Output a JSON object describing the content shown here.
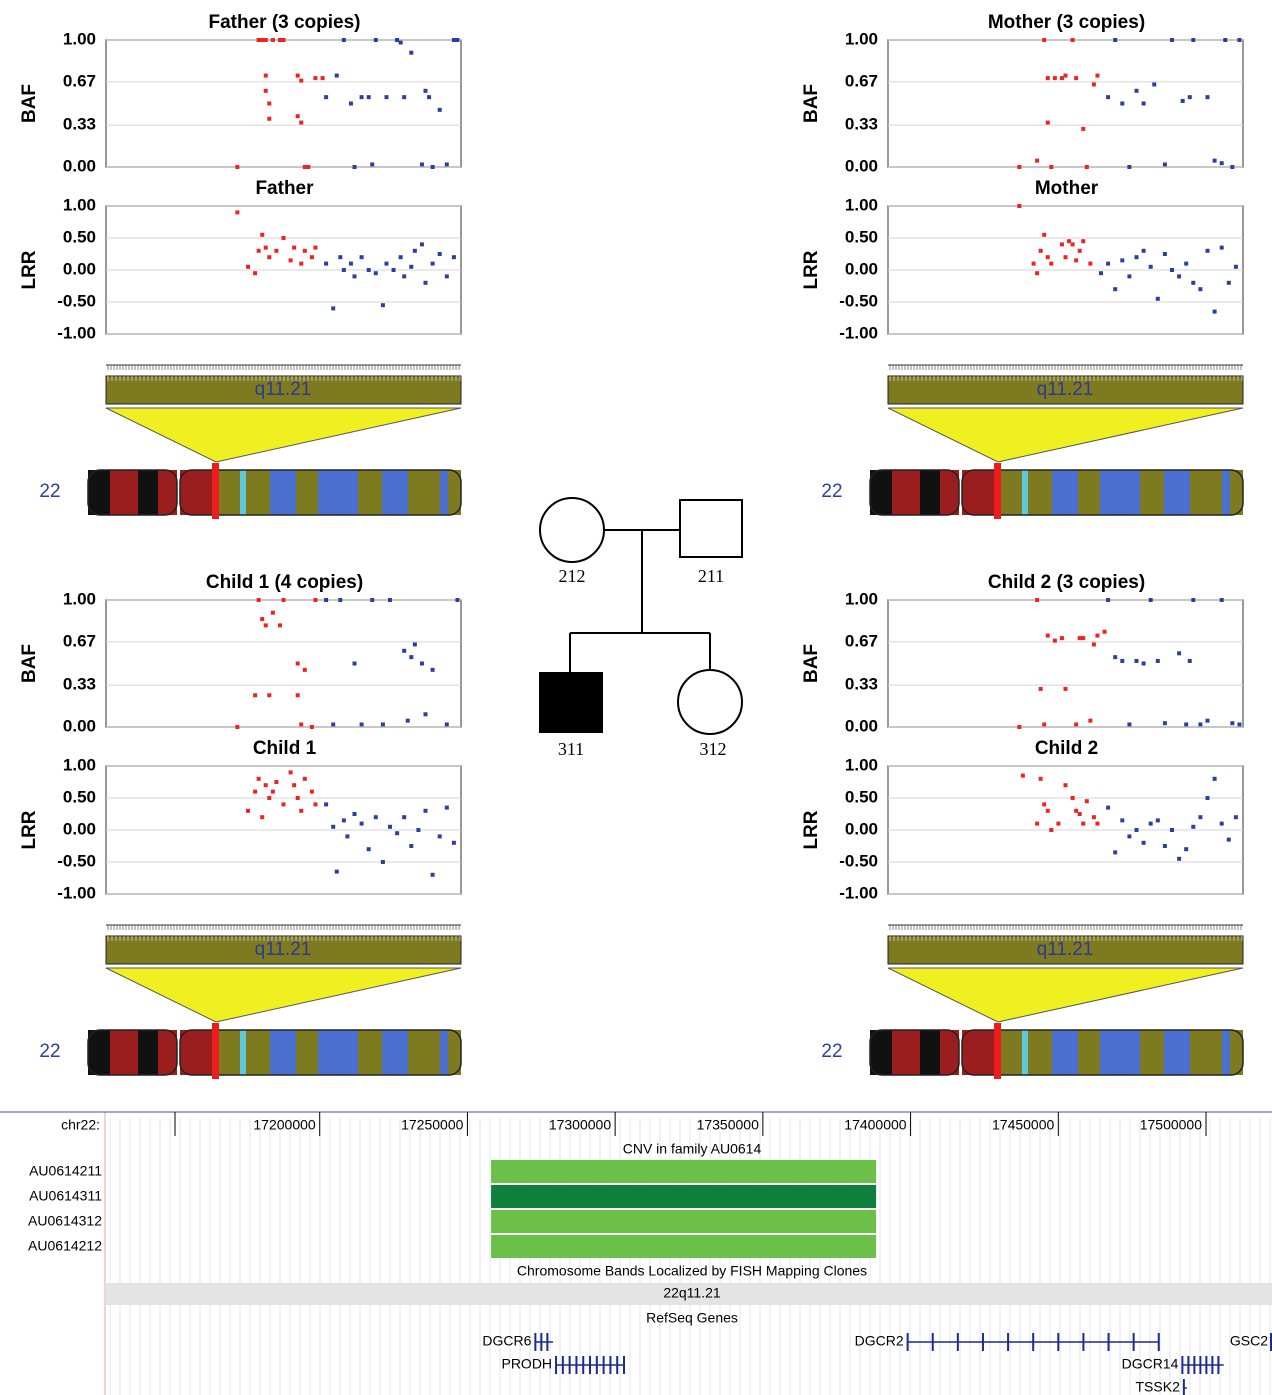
{
  "chart_data": [
    {
      "type": "scatter",
      "title": "Father (3 copies)",
      "ylabel": "BAF",
      "band_label": "q11.21",
      "chromosome": "22",
      "xlim": [
        0,
        100
      ],
      "ylim": [
        0,
        1
      ],
      "yticks": [
        {
          "value": 1,
          "label": "1.00"
        },
        {
          "value": 0.67,
          "label": "0.67"
        },
        {
          "value": 0.33,
          "label": "0.33"
        },
        {
          "value": 0,
          "label": "0.00"
        }
      ],
      "series": [
        {
          "color": "#ee2222",
          "x": [
            37,
            43,
            44,
            45,
            45,
            45,
            46,
            46,
            47,
            49,
            50,
            54,
            54,
            55,
            55,
            56,
            57,
            59,
            61
          ],
          "values": [
            0,
            1,
            1,
            1,
            0.72,
            0.6,
            0.5,
            0.38,
            1,
            1,
            1,
            0.72,
            0.4,
            0.35,
            0.68,
            0,
            0,
            0.7,
            0.7
          ]
        },
        {
          "color": "#2a3fa0",
          "x": [
            62,
            65,
            67,
            69,
            70,
            72,
            74,
            75,
            76,
            79,
            82,
            83,
            84,
            86,
            89,
            90,
            91,
            92,
            94,
            96,
            98,
            99
          ],
          "values": [
            0.55,
            0.72,
            1,
            0.5,
            0,
            0.55,
            0.55,
            0.02,
            1,
            0.55,
            1,
            0.98,
            0.55,
            0.9,
            0.02,
            0.6,
            0.55,
            0,
            0.45,
            0.02,
            1,
            1
          ]
        }
      ]
    },
    {
      "type": "scatter",
      "title": "Father",
      "ylabel": "LRR",
      "xlim": [
        0,
        100
      ],
      "ylim": [
        -1,
        1
      ],
      "yticks": [
        {
          "value": 1,
          "label": "1.00"
        },
        {
          "value": 0.5,
          "label": "0.50"
        },
        {
          "value": 0,
          "label": "0.00"
        },
        {
          "value": -0.5,
          "label": "-0.50"
        },
        {
          "value": -1,
          "label": "-1.00"
        }
      ],
      "series": [
        {
          "color": "#ee2222",
          "x": [
            37,
            40,
            42,
            43,
            44,
            45,
            46,
            48,
            50,
            52,
            53,
            55,
            56,
            58,
            59
          ],
          "values": [
            0.9,
            0.05,
            -0.05,
            0.3,
            0.55,
            0.35,
            0.2,
            0.3,
            0.5,
            0.15,
            0.35,
            0.1,
            0.3,
            0.2,
            0.35
          ]
        },
        {
          "color": "#2a3fa0",
          "x": [
            62,
            64,
            66,
            67,
            69,
            70,
            72,
            74,
            76,
            78,
            79,
            81,
            83,
            84,
            86,
            87,
            89,
            90,
            92,
            94,
            96,
            98
          ],
          "values": [
            0.1,
            -0.6,
            0.2,
            0,
            0.1,
            -0.1,
            0.2,
            0,
            -0.05,
            -0.55,
            0.1,
            0,
            0.2,
            -0.1,
            0.05,
            0.3,
            0.4,
            -0.2,
            0.1,
            0.25,
            -0.1,
            0.2
          ]
        }
      ]
    },
    {
      "type": "scatter",
      "title": "Mother (3 copies)",
      "ylabel": "BAF",
      "band_label": "q11.21",
      "chromosome": "22",
      "xlim": [
        0,
        100
      ],
      "ylim": [
        0,
        1
      ],
      "yticks": [
        {
          "value": 1,
          "label": "1.00"
        },
        {
          "value": 0.67,
          "label": "0.67"
        },
        {
          "value": 0.33,
          "label": "0.33"
        },
        {
          "value": 0,
          "label": "0.00"
        }
      ],
      "series": [
        {
          "color": "#ee2222",
          "x": [
            37,
            42,
            44,
            45,
            45,
            46,
            47,
            49,
            50,
            52,
            53,
            55,
            56,
            58,
            59
          ],
          "values": [
            0,
            0.05,
            1,
            0.7,
            0.35,
            0,
            0.7,
            0.7,
            0.72,
            1,
            0.7,
            0.3,
            0,
            0.65,
            0.72
          ]
        },
        {
          "color": "#2a3fa0",
          "x": [
            62,
            64,
            66,
            68,
            70,
            72,
            75,
            78,
            80,
            83,
            85,
            86,
            90,
            92,
            94,
            95,
            97,
            99
          ],
          "values": [
            0.55,
            1,
            0.5,
            0,
            0.6,
            0.5,
            0.65,
            0.02,
            1,
            0.52,
            0.55,
            1,
            0.55,
            0.05,
            0.03,
            1,
            0,
            1
          ]
        }
      ]
    },
    {
      "type": "scatter",
      "title": "Mother",
      "ylabel": "LRR",
      "xlim": [
        0,
        100
      ],
      "ylim": [
        -1,
        1
      ],
      "yticks": [
        {
          "value": 1,
          "label": "1.00"
        },
        {
          "value": 0.5,
          "label": "0.50"
        },
        {
          "value": 0,
          "label": "0.00"
        },
        {
          "value": -0.5,
          "label": "-0.50"
        },
        {
          "value": -1,
          "label": "-1.00"
        }
      ],
      "series": [
        {
          "color": "#ee2222",
          "x": [
            37,
            41,
            42,
            43,
            44,
            45,
            46,
            49,
            50,
            51,
            52,
            53,
            54,
            55,
            57
          ],
          "values": [
            1,
            0.1,
            -0.05,
            0.3,
            0.55,
            0.2,
            0.1,
            0.4,
            0.2,
            0.45,
            0.4,
            0.15,
            0.3,
            0.45,
            0.1
          ]
        },
        {
          "color": "#2a3fa0",
          "x": [
            60,
            62,
            64,
            66,
            68,
            70,
            72,
            74,
            76,
            78,
            80,
            82,
            84,
            86,
            88,
            90,
            92,
            94,
            96,
            98
          ],
          "values": [
            -0.05,
            0.1,
            -0.3,
            0.15,
            -0.1,
            0.2,
            0.3,
            0.05,
            -0.45,
            0.25,
            0,
            -0.1,
            0.1,
            -0.2,
            -0.3,
            0.3,
            -0.65,
            0.35,
            -0.2,
            0.05
          ]
        }
      ]
    },
    {
      "type": "scatter",
      "title": "Child 1 (4 copies)",
      "ylabel": "BAF",
      "band_label": "q11.21",
      "chromosome": "22",
      "xlim": [
        0,
        100
      ],
      "ylim": [
        0,
        1
      ],
      "yticks": [
        {
          "value": 1,
          "label": "1.00"
        },
        {
          "value": 0.67,
          "label": "0.67"
        },
        {
          "value": 0.33,
          "label": "0.33"
        },
        {
          "value": 0,
          "label": "0.00"
        }
      ],
      "series": [
        {
          "color": "#ee2222",
          "x": [
            37,
            42,
            43,
            44,
            45,
            46,
            47,
            49,
            50,
            54,
            54,
            55,
            56,
            58,
            59
          ],
          "values": [
            0,
            0.25,
            1,
            0.85,
            0.8,
            0.25,
            0.9,
            0.8,
            1,
            0.5,
            0.25,
            0.02,
            0.45,
            0,
            1
          ]
        },
        {
          "color": "#2a3fa0",
          "x": [
            62,
            64,
            66,
            70,
            72,
            75,
            78,
            80,
            84,
            85,
            86,
            87,
            89,
            90,
            92,
            96,
            99
          ],
          "values": [
            1,
            0.02,
            1,
            0.5,
            0.02,
            1,
            0.02,
            1,
            0.6,
            0.05,
            0.55,
            0.65,
            0.5,
            0.1,
            0.45,
            0.02,
            1
          ]
        }
      ]
    },
    {
      "type": "scatter",
      "title": "Child 1",
      "ylabel": "LRR",
      "xlim": [
        0,
        100
      ],
      "ylim": [
        -1,
        1
      ],
      "yticks": [
        {
          "value": 1,
          "label": "1.00"
        },
        {
          "value": 0.5,
          "label": "0.50"
        },
        {
          "value": 0,
          "label": "0.00"
        },
        {
          "value": -0.5,
          "label": "-0.50"
        },
        {
          "value": -1,
          "label": "-1.00"
        }
      ],
      "series": [
        {
          "color": "#ee2222",
          "x": [
            40,
            42,
            43,
            44,
            45,
            46,
            47,
            48,
            50,
            52,
            53,
            54,
            55,
            56,
            58,
            59
          ],
          "values": [
            0.3,
            0.6,
            0.8,
            0.2,
            0.7,
            0.5,
            0.6,
            0.75,
            0.4,
            0.9,
            0.7,
            0.5,
            0.3,
            0.8,
            0.6,
            0.4
          ]
        },
        {
          "color": "#2a3fa0",
          "x": [
            62,
            64,
            65,
            67,
            68,
            70,
            72,
            74,
            76,
            78,
            80,
            82,
            84,
            86,
            88,
            90,
            92,
            94,
            96,
            98
          ],
          "values": [
            0.4,
            0.05,
            -0.65,
            0.15,
            -0.1,
            0.25,
            0.1,
            -0.3,
            0.2,
            -0.5,
            0.05,
            -0.05,
            0.2,
            -0.25,
            0,
            0.3,
            -0.7,
            -0.1,
            0.35,
            -0.2
          ]
        }
      ]
    },
    {
      "type": "scatter",
      "title": "Child 2 (3 copies)",
      "ylabel": "BAF",
      "band_label": "q11.21",
      "chromosome": "22",
      "xlim": [
        0,
        100
      ],
      "ylim": [
        0,
        1
      ],
      "yticks": [
        {
          "value": 1,
          "label": "1.00"
        },
        {
          "value": 0.67,
          "label": "0.67"
        },
        {
          "value": 0.33,
          "label": "0.33"
        },
        {
          "value": 0,
          "label": "0.00"
        }
      ],
      "series": [
        {
          "color": "#ee2222",
          "x": [
            37,
            42,
            43,
            44,
            45,
            47,
            49,
            50,
            53,
            54,
            55,
            57,
            58,
            59,
            61
          ],
          "values": [
            0,
            1,
            0.3,
            0.02,
            0.72,
            0.68,
            0.7,
            0.3,
            0.02,
            0.7,
            0.7,
            0.05,
            0.65,
            0.72,
            0.75
          ]
        },
        {
          "color": "#2a3fa0",
          "x": [
            62,
            64,
            66,
            68,
            70,
            72,
            74,
            76,
            78,
            82,
            84,
            85,
            86,
            88,
            90,
            94,
            97,
            99
          ],
          "values": [
            1,
            0.55,
            0.52,
            0.02,
            0.52,
            0.5,
            1,
            0.52,
            0.03,
            0.58,
            0.02,
            0.52,
            1,
            0.02,
            0.05,
            1,
            0.03,
            0.02
          ]
        }
      ]
    },
    {
      "type": "scatter",
      "title": "Child 2",
      "ylabel": "LRR",
      "xlim": [
        0,
        100
      ],
      "ylim": [
        -1,
        1
      ],
      "yticks": [
        {
          "value": 1,
          "label": "1.00"
        },
        {
          "value": 0.5,
          "label": "0.50"
        },
        {
          "value": 0,
          "label": "0.00"
        },
        {
          "value": -0.5,
          "label": "-0.50"
        },
        {
          "value": -1,
          "label": "-1.00"
        }
      ],
      "series": [
        {
          "color": "#ee2222",
          "x": [
            38,
            42,
            43,
            44,
            45,
            46,
            48,
            50,
            52,
            53,
            54,
            55,
            56,
            58,
            59
          ],
          "values": [
            0.85,
            0.1,
            0.8,
            0.4,
            0.3,
            0,
            0.1,
            0.7,
            0.5,
            0.3,
            0.25,
            0.1,
            0.45,
            0.2,
            0.1
          ]
        },
        {
          "color": "#2a3fa0",
          "x": [
            62,
            64,
            66,
            68,
            70,
            72,
            74,
            76,
            78,
            80,
            82,
            84,
            86,
            88,
            90,
            92,
            94,
            96,
            98
          ],
          "values": [
            0.35,
            -0.35,
            0.15,
            -0.1,
            0,
            -0.2,
            0.1,
            0.15,
            -0.25,
            0,
            -0.45,
            -0.3,
            0.05,
            0.2,
            0.5,
            0.8,
            0.1,
            -0.15,
            0.2
          ]
        }
      ]
    }
  ],
  "pedigree": {
    "members": [
      "212",
      "211",
      "311",
      "312"
    ]
  },
  "browser": {
    "chrom": "chr22:",
    "xlim": [
      17127667,
      17522333
    ],
    "xticks": [
      17200000,
      17250000,
      17300000,
      17350000,
      17400000,
      17450000,
      17500000
    ],
    "cnv_title": "CNV in family AU0614",
    "tracks": [
      {
        "name": "AU0614211",
        "color": "#6cc04a",
        "start": 17258000,
        "end": 17388333
      },
      {
        "name": "AU0614311",
        "color": "#0e7f3c",
        "start": 17258000,
        "end": 17388333
      },
      {
        "name": "AU0614312",
        "color": "#6cc04a",
        "start": 17258000,
        "end": 17388333
      },
      {
        "name": "AU0614212",
        "color": "#6cc04a",
        "start": 17258000,
        "end": 17388333
      }
    ],
    "fish_title": "Chromosome Bands Localized by FISH Mapping Clones",
    "fish_band": "22q11.21",
    "refseq_title": "RefSeq Genes",
    "genes": [
      {
        "name": "DGCR6",
        "start": 17273000,
        "end": 17279000,
        "row": 0,
        "side": "left"
      },
      {
        "name": "PRODH",
        "start": 17280000,
        "end": 17303000,
        "row": 1,
        "side": "left"
      },
      {
        "name": "DGCR2",
        "start": 17399000,
        "end": 17484000,
        "row": 0,
        "side": "left"
      },
      {
        "name": "GSC2",
        "start": 17522000,
        "end": 17522300,
        "row": 0,
        "side": "right"
      },
      {
        "name": "DGCR14",
        "start": 17492000,
        "end": 17506000,
        "row": 1,
        "side": "left"
      },
      {
        "name": "TSSK2",
        "start": 17492500,
        "end": 17493500,
        "row": 2,
        "side": "left"
      }
    ]
  }
}
